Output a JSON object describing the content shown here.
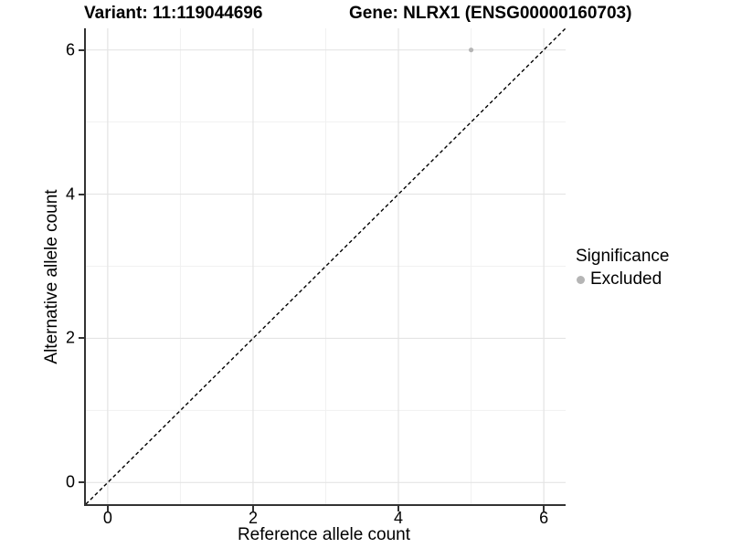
{
  "titles": {
    "variant": "Variant: 11:119044696",
    "gene": "Gene: NLRX1 (ENSG00000160703)"
  },
  "chart_data": {
    "type": "scatter",
    "title_left": "Variant: 11:119044696",
    "title_right": "Gene: NLRX1 (ENSG00000160703)",
    "xlabel": "Reference allele count",
    "ylabel": "Alternative allele count",
    "xlim": [
      -0.3,
      6.3
    ],
    "ylim": [
      -0.3,
      6.3
    ],
    "x_ticks": [
      0,
      2,
      4,
      6
    ],
    "y_ticks": [
      0,
      2,
      4,
      6
    ],
    "x_minor_ticks": [
      1,
      3,
      5
    ],
    "y_minor_ticks": [
      1,
      3,
      5
    ],
    "grid": "major and minor, light gray on white",
    "reference_line": {
      "type": "identity y=x",
      "style": "dashed",
      "color": "#000000"
    },
    "series": [
      {
        "name": "Excluded",
        "color": "#b5b5b5",
        "points": [
          {
            "x": 5,
            "y": 6
          }
        ]
      }
    ],
    "legend": {
      "title": "Significance",
      "position": "right",
      "items": [
        {
          "label": "Excluded",
          "color": "#b5b5b5"
        }
      ]
    }
  },
  "colors": {
    "background": "#ffffff",
    "axis_line": "#333333",
    "grid_major": "#e4e4e4",
    "grid_minor": "#f1f1f1",
    "point": "#b5b5b5",
    "text": "#000000"
  }
}
